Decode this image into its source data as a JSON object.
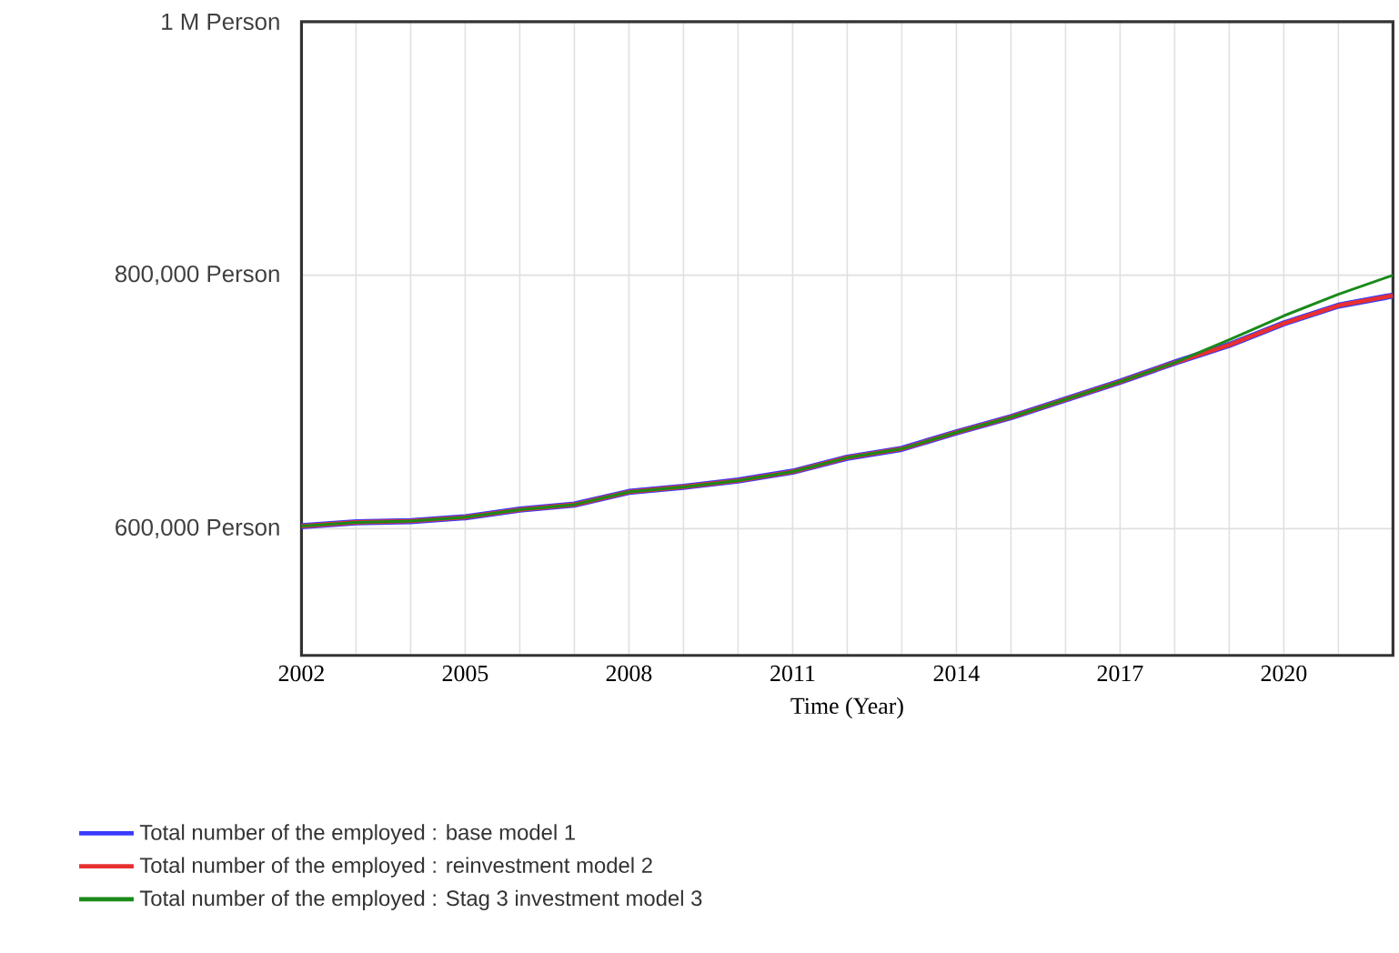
{
  "chart_data": {
    "type": "line",
    "xlabel": "Time (Year)",
    "x": [
      2002,
      2003,
      2004,
      2005,
      2006,
      2007,
      2008,
      2009,
      2010,
      2011,
      2012,
      2013,
      2014,
      2015,
      2016,
      2017,
      2018,
      2019,
      2020,
      2021,
      2022
    ],
    "series": [
      {
        "name": "Total number of the employed : base model 1",
        "color": "#3b3bff",
        "values": [
          602000,
          605000,
          606000,
          609000,
          615000,
          619000,
          629000,
          633000,
          638000,
          645000,
          656000,
          663000,
          676000,
          688000,
          702000,
          716000,
          731000,
          745000,
          762000,
          776000,
          784000
        ]
      },
      {
        "name": "Total number of the employed : reinvestment model 2",
        "color": "#e83030",
        "values": [
          602000,
          605000,
          606000,
          609000,
          615000,
          619000,
          629000,
          633000,
          638000,
          645000,
          656000,
          663000,
          676000,
          688000,
          702000,
          716000,
          731000,
          745000,
          762000,
          776000,
          784000
        ]
      },
      {
        "name": "Total number of the employed : Stag 3 investment model 3",
        "color": "#1a8a1a",
        "values": [
          602000,
          605000,
          606000,
          609000,
          615000,
          619000,
          629000,
          633000,
          638000,
          645000,
          656000,
          663000,
          676000,
          688000,
          702000,
          716000,
          731000,
          749000,
          768000,
          785000,
          800000
        ]
      }
    ],
    "xlim": [
      2002,
      2022
    ],
    "xticks": [
      2002,
      {
        "value": 2003,
        "label": null
      },
      {
        "value": 2004,
        "label": null
      },
      2005,
      {
        "value": 2006,
        "label": null
      },
      {
        "value": 2007,
        "label": null
      },
      2008,
      {
        "value": 2009,
        "label": null
      },
      {
        "value": 2010,
        "label": null
      },
      2011,
      {
        "value": 2012,
        "label": null
      },
      {
        "value": 2013,
        "label": null
      },
      2014,
      {
        "value": 2015,
        "label": null
      },
      {
        "value": 2016,
        "label": null
      },
      2017,
      {
        "value": 2018,
        "label": null
      },
      {
        "value": 2019,
        "label": null
      },
      2020,
      {
        "value": 2021,
        "label": null
      },
      {
        "value": 2022,
        "label": null
      }
    ],
    "ylim": [
      500000,
      1000000
    ],
    "yticks": [
      {
        "value": 600000,
        "label": "600,000 Person"
      },
      {
        "value": 800000,
        "label": "800,000 Person"
      },
      {
        "value": 1000000,
        "label": "1 M Person"
      }
    ],
    "grid": true,
    "legend": "bottom",
    "marker": "none",
    "line_style": "solid"
  }
}
